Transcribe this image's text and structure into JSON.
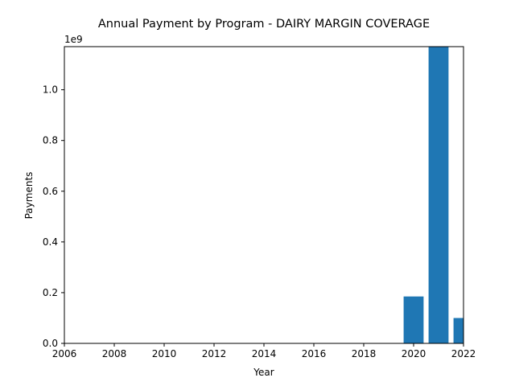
{
  "chart_data": {
    "type": "bar",
    "title": "Annual Payment by Program - DAIRY MARGIN COVERAGE",
    "xlabel": "Year",
    "ylabel": "Payments",
    "y_offset_label": "1e9",
    "xlim": [
      2006,
      2022
    ],
    "ylim": [
      0,
      1.17
    ],
    "x_ticks": [
      2006,
      2008,
      2010,
      2012,
      2014,
      2016,
      2018,
      2020,
      2022
    ],
    "y_ticks": [
      0.0,
      0.2,
      0.4,
      0.6,
      0.8,
      1.0
    ],
    "x_tick_labels": [
      "2006",
      "2008",
      "2010",
      "2012",
      "2014",
      "2016",
      "2018",
      "2020",
      "2022"
    ],
    "y_tick_labels": [
      "0.0",
      "0.2",
      "0.4",
      "0.6",
      "0.8",
      "1.0"
    ],
    "x": [
      2020,
      2021,
      2022
    ],
    "values": [
      0.185,
      1.17,
      0.1
    ],
    "bar_width": 0.8,
    "grid": false,
    "color": "#1f77b4"
  }
}
